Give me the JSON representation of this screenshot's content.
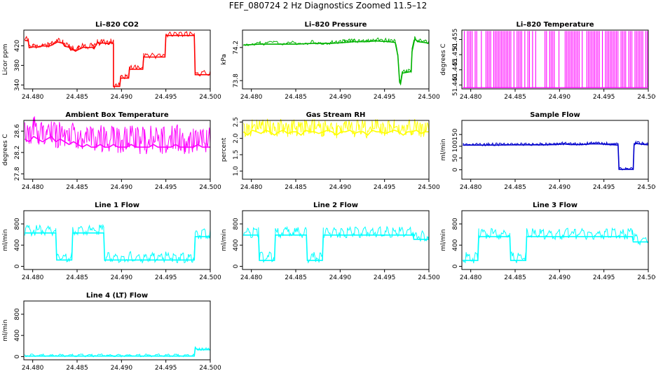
{
  "title": "FEF_080724  2 Hz Diagnostics Zoomed 11.5–12",
  "chart_data": [
    {
      "type": "line",
      "title": "Li–820 CO2",
      "xlabel": "",
      "ylabel": "Licor ppm",
      "color": "#ff0000",
      "xlim": [
        24.479,
        24.5
      ],
      "ylim": [
        332,
        452
      ],
      "x_ticks": [
        "24.480",
        "24.485",
        "24.490",
        "24.495",
        "24.500"
      ],
      "x_tick_values": [
        24.48,
        24.485,
        24.49,
        24.495,
        24.5
      ],
      "y_ticks": [
        "340",
        "380",
        "420"
      ],
      "y_tick_values": [
        340,
        380,
        420
      ],
      "x": [
        24.4791,
        24.4795,
        24.4796,
        24.4801,
        24.4804,
        24.4808,
        24.4811,
        24.4818,
        24.4821,
        24.4826,
        24.4828,
        24.4834,
        24.4836,
        24.4841,
        24.4843,
        24.4845,
        24.4848,
        24.4851,
        24.4857,
        24.4862,
        24.4867,
        24.4869,
        24.4873,
        24.4875,
        24.4878,
        24.4886,
        24.4888,
        24.4891,
        24.4891,
        24.4891,
        24.4898,
        24.4899,
        24.4908,
        24.4909,
        24.4924,
        24.4925,
        24.4949,
        24.495,
        24.4982,
        24.4983,
        24.5
      ],
      "y": [
        431,
        430,
        416,
        418,
        417,
        418,
        420,
        419,
        421,
        426,
        428,
        425,
        419,
        417,
        411,
        413,
        409,
        412,
        417,
        416,
        417,
        414,
        427,
        424,
        426,
        424,
        427,
        424,
        410,
        337,
        337,
        354,
        354,
        372,
        372,
        397,
        397,
        441,
        441,
        361,
        361
      ]
    },
    {
      "type": "line",
      "title": "Li–820 Pressure",
      "xlabel": "",
      "ylabel": "kPa",
      "color": "#00b200",
      "xlim": [
        24.479,
        24.5
      ],
      "ylim": [
        73.7,
        74.41
      ],
      "x_ticks": [
        "24.480",
        "24.485",
        "24.490",
        "24.495",
        "24.500"
      ],
      "x_tick_values": [
        24.48,
        24.485,
        24.49,
        24.495,
        24.5
      ],
      "y_ticks": [
        "73.8",
        "74.2"
      ],
      "y_tick_values": [
        73.8,
        74.2
      ],
      "x": [
        24.4791,
        24.481,
        24.483,
        24.485,
        24.487,
        24.489,
        24.4905,
        24.4915,
        24.493,
        24.494,
        24.4955,
        24.4962,
        24.4965,
        24.4967,
        24.4968,
        24.497,
        24.4975,
        24.498,
        24.4981,
        24.4984,
        24.4988,
        24.4995,
        24.5
      ],
      "y": [
        74.23,
        74.24,
        74.24,
        74.24,
        74.25,
        74.25,
        74.26,
        74.27,
        74.27,
        74.28,
        74.27,
        74.26,
        74.1,
        73.78,
        73.76,
        73.89,
        73.9,
        73.91,
        74.15,
        74.3,
        74.27,
        74.26,
        74.25
      ]
    },
    {
      "type": "line",
      "title": "Li–820 Temperature",
      "xlabel": "",
      "ylabel": "degrees C",
      "color": "#ff00ff",
      "xlim": [
        24.479,
        24.5
      ],
      "ylim": [
        51.4387,
        51.4581
      ],
      "x_ticks": [
        "24.480",
        "24.485",
        "24.490",
        "24.495",
        "24.500"
      ],
      "x_tick_values": [
        24.48,
        24.485,
        24.49,
        24.495,
        24.5
      ],
      "y_ticks": [
        "51.440",
        "51.445",
        "51.450",
        "51.455"
      ],
      "y_tick_values": [
        51.44,
        51.445,
        51.45,
        51.455
      ],
      "note_levels": [
        51.4391,
        51.4578
      ],
      "x": [
        24.4791,
        24.4793,
        24.4797,
        24.4802,
        24.4806,
        24.481,
        24.4814,
        24.4817,
        24.4821,
        24.4826,
        24.483,
        24.4834,
        24.484,
        24.4843,
        24.4848,
        24.4853,
        24.4857,
        24.4861,
        24.4866,
        24.4869,
        24.4873,
        24.4879,
        24.4883,
        24.4888,
        24.4891,
        24.4895,
        24.4899,
        24.4904,
        24.4908,
        24.4913,
        24.4917,
        24.4922,
        24.4926,
        24.4931,
        24.4934,
        24.4939,
        24.4944,
        24.4948,
        24.4953,
        24.4958,
        24.4962,
        24.4966,
        24.4971,
        24.4977,
        24.4983,
        24.4987,
        24.4991,
        24.4995,
        24.4999
      ],
      "y": [
        51.4391,
        51.4578,
        51.4391,
        51.4578,
        51.4391,
        51.4578,
        51.4391,
        51.4578,
        51.4391,
        51.4578,
        51.4391,
        51.4578,
        51.4391,
        51.4578,
        51.4391,
        51.4578,
        51.4391,
        51.4578,
        51.4391,
        51.4578,
        51.4391,
        51.4578,
        51.4391,
        51.4578,
        51.4391,
        51.4578,
        51.4391,
        51.4578,
        51.4391,
        51.4578,
        51.4391,
        51.4578,
        51.4391,
        51.4578,
        51.4391,
        51.4578,
        51.4391,
        51.4578,
        51.4391,
        51.4578,
        51.4391,
        51.4578,
        51.4391,
        51.4578,
        51.4391,
        51.4578,
        51.4391,
        51.4578,
        51.4391
      ]
    },
    {
      "type": "line",
      "title": "Ambient Box Temperature",
      "xlabel": "",
      "ylabel": "degrees C",
      "color": "#ff00ff",
      "xlim": [
        24.479,
        24.5
      ],
      "ylim": [
        27.7,
        28.8
      ],
      "x_ticks": [
        "24.480",
        "24.485",
        "24.490",
        "24.495",
        "24.500"
      ],
      "x_tick_values": [
        24.48,
        24.485,
        24.49,
        24.495,
        24.5
      ],
      "y_ticks": [
        "27.8",
        "28.2",
        "28.6"
      ],
      "y_tick_values": [
        27.8,
        28.2,
        28.6
      ],
      "x": [
        24.4791,
        24.4796,
        24.4801,
        24.4806,
        24.4811,
        24.4816,
        24.4821,
        24.4826,
        24.4831,
        24.4836,
        24.4841,
        24.4846,
        24.4851,
        24.4856,
        24.4861,
        24.4866,
        24.4871,
        24.4876,
        24.4881,
        24.4886,
        24.4891,
        24.4896,
        24.4901,
        24.4906,
        24.4911,
        24.4916,
        24.4921,
        24.4926,
        24.4931,
        24.4936,
        24.4941,
        24.4946,
        24.4951,
        24.4956,
        24.4961,
        24.4966,
        24.4971,
        24.4976,
        24.4981,
        24.4986,
        24.4991,
        24.4996,
        24.5
      ],
      "y": [
        28.45,
        28.4,
        28.5,
        28.45,
        28.4,
        28.45,
        28.5,
        28.4,
        28.45,
        28.4,
        28.35,
        28.4,
        28.35,
        28.3,
        28.35,
        28.3,
        28.3,
        28.35,
        28.3,
        28.3,
        28.35,
        28.3,
        28.3,
        28.3,
        28.35,
        28.3,
        28.3,
        28.3,
        28.3,
        28.35,
        28.3,
        28.3,
        28.3,
        28.3,
        28.35,
        28.3,
        28.3,
        28.3,
        28.3,
        28.35,
        28.3,
        28.3,
        28.3
      ]
    },
    {
      "type": "line",
      "title": "Gas Stream RH",
      "xlabel": "",
      "ylabel": "percent",
      "color": "#ffff00",
      "xlim": [
        24.479,
        24.5
      ],
      "ylim": [
        0.75,
        2.55
      ],
      "x_ticks": [
        "24.480",
        "24.485",
        "24.490",
        "24.495",
        "24.500"
      ],
      "x_tick_values": [
        24.48,
        24.485,
        24.49,
        24.495,
        24.5
      ],
      "y_ticks": [
        "1.0",
        "1.5",
        "2.0",
        "2.5"
      ],
      "y_tick_values": [
        1.0,
        1.5,
        2.0,
        2.5
      ],
      "x": [
        24.4791,
        24.4796,
        24.4801,
        24.4806,
        24.4811,
        24.4816,
        24.4821,
        24.4826,
        24.4831,
        24.4836,
        24.4841,
        24.4846,
        24.4851,
        24.4856,
        24.4861,
        24.4866,
        24.4871,
        24.4876,
        24.4881,
        24.4886,
        24.4891,
        24.4896,
        24.4901,
        24.4906,
        24.4911,
        24.4916,
        24.4921,
        24.4926,
        24.4931,
        24.4936,
        24.4941,
        24.4946,
        24.4951,
        24.4956,
        24.4961,
        24.4966,
        24.4971,
        24.4976,
        24.4981,
        24.4986,
        24.4991,
        24.4996,
        24.5
      ],
      "y": [
        2.2,
        2.1,
        2.25,
        2.2,
        2.15,
        2.25,
        2.2,
        2.1,
        2.2,
        2.25,
        2.15,
        2.2,
        2.2,
        2.1,
        2.25,
        2.2,
        2.2,
        2.15,
        2.2,
        2.25,
        2.2,
        2.1,
        2.2,
        2.2,
        2.25,
        2.15,
        2.2,
        2.2,
        2.1,
        2.25,
        2.2,
        2.2,
        2.15,
        2.2,
        2.25,
        2.2,
        2.1,
        2.2,
        2.2,
        2.25,
        2.15,
        2.2,
        2.2
      ]
    },
    {
      "type": "line",
      "title": "Sample Flow",
      "xlabel": "",
      "ylabel": "ml/min",
      "color": "#0000cc",
      "xlim": [
        24.479,
        24.5
      ],
      "ylim": [
        -40,
        210
      ],
      "x_ticks": [
        "24.480",
        "24.485",
        "24.490",
        "24.495",
        "24.500"
      ],
      "x_tick_values": [
        24.48,
        24.485,
        24.49,
        24.495,
        24.5
      ],
      "y_ticks": [
        "0",
        "50",
        "100",
        "150"
      ],
      "y_tick_values": [
        0,
        50,
        100,
        150
      ],
      "x": [
        24.4791,
        24.482,
        24.485,
        24.488,
        24.4895,
        24.4905,
        24.4912,
        24.4925,
        24.4935,
        24.4945,
        24.4955,
        24.4966,
        24.4967,
        24.4983,
        24.4984,
        24.4986,
        24.4995,
        24.5
      ],
      "y": [
        105,
        105,
        106,
        106,
        107,
        110,
        107,
        107,
        110,
        110,
        108,
        105,
        2,
        2,
        105,
        112,
        108,
        106
      ]
    },
    {
      "type": "line",
      "title": "Line 1 Flow",
      "xlabel": "",
      "ylabel": "ml/min",
      "color": "#00ffff",
      "xlim": [
        24.479,
        24.5
      ],
      "ylim": [
        -60,
        1050
      ],
      "x_ticks": [
        "24.480",
        "24.485",
        "24.490",
        "24.495",
        "24.500"
      ],
      "x_tick_values": [
        24.48,
        24.485,
        24.49,
        24.495,
        24.5
      ],
      "y_ticks": [
        "0",
        "400",
        "800"
      ],
      "y_tick_values": [
        0,
        400,
        800
      ],
      "x": [
        24.4791,
        24.4826,
        24.4827,
        24.4844,
        24.4845,
        24.488,
        24.4881,
        24.4982,
        24.4983,
        24.5
      ],
      "y": [
        630,
        630,
        120,
        120,
        630,
        630,
        120,
        120,
        560,
        560
      ]
    },
    {
      "type": "line",
      "title": "Line 2 Flow",
      "xlabel": "",
      "ylabel": "ml/min",
      "color": "#00ffff",
      "xlim": [
        24.479,
        24.5
      ],
      "ylim": [
        -60,
        1050
      ],
      "x_ticks": [
        "24.480",
        "24.485",
        "24.490",
        "24.495",
        "24.500"
      ],
      "x_tick_values": [
        24.48,
        24.485,
        24.49,
        24.495,
        24.5
      ],
      "y_ticks": [
        "0",
        "400",
        "800"
      ],
      "y_tick_values": [
        0,
        400,
        800
      ],
      "x": [
        24.4791,
        24.4808,
        24.4809,
        24.4826,
        24.4827,
        24.4862,
        24.4863,
        24.488,
        24.4881,
        24.4982,
        24.4983,
        24.5
      ],
      "y": [
        590,
        590,
        110,
        110,
        590,
        590,
        110,
        110,
        590,
        590,
        510,
        510
      ]
    },
    {
      "type": "line",
      "title": "Line 3 Flow",
      "xlabel": "",
      "ylabel": "ml/min",
      "color": "#00ffff",
      "xlim": [
        24.479,
        24.5
      ],
      "ylim": [
        -60,
        1050
      ],
      "x_ticks": [
        "24.480",
        "24.485",
        "24.490",
        "24.495",
        "24.500"
      ],
      "x_tick_values": [
        24.48,
        24.485,
        24.49,
        24.495,
        24.5
      ],
      "y_ticks": [
        "0",
        "400",
        "800"
      ],
      "y_tick_values": [
        0,
        400,
        800
      ],
      "x": [
        24.4791,
        24.4808,
        24.4809,
        24.4844,
        24.4845,
        24.4862,
        24.4863,
        24.4982,
        24.4983,
        24.5
      ],
      "y": [
        110,
        110,
        560,
        560,
        110,
        110,
        560,
        560,
        460,
        460
      ]
    },
    {
      "type": "line",
      "title": "Line 4 (LT) Flow",
      "xlabel": "",
      "ylabel": "ml/min",
      "color": "#00ffff",
      "xlim": [
        24.479,
        24.5
      ],
      "ylim": [
        -60,
        1050
      ],
      "x_ticks": [
        "24.480",
        "24.485",
        "24.490",
        "24.495",
        "24.500"
      ],
      "x_tick_values": [
        24.48,
        24.485,
        24.49,
        24.495,
        24.5
      ],
      "y_ticks": [
        "0",
        "400",
        "800"
      ],
      "y_tick_values": [
        0,
        400,
        800
      ],
      "x": [
        24.4791,
        24.4982,
        24.4983,
        24.4986,
        24.5
      ],
      "y": [
        10,
        10,
        160,
        130,
        130
      ]
    }
  ]
}
